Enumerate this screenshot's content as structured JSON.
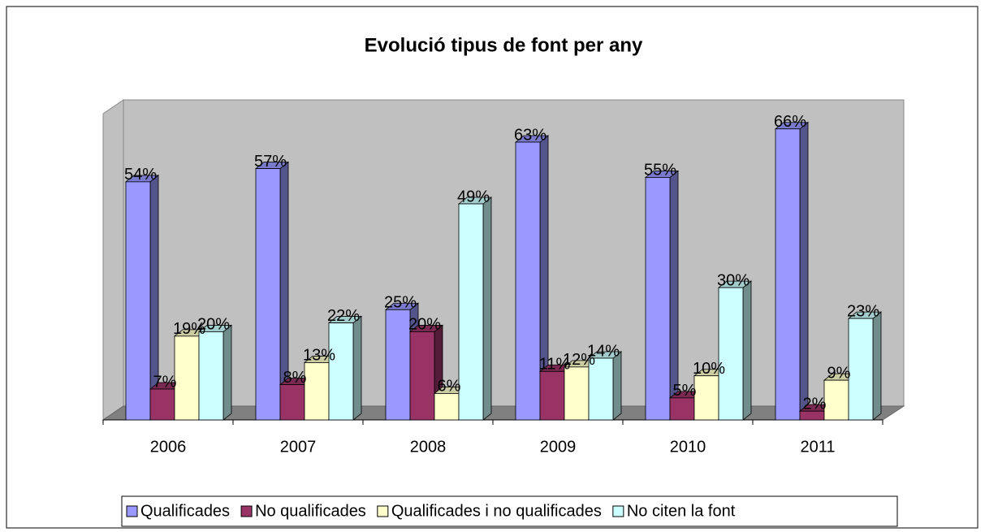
{
  "chart_data": {
    "type": "bar3d",
    "title": "Evolució tipus de font per any",
    "categories": [
      "2006",
      "2007",
      "2008",
      "2009",
      "2010",
      "2011"
    ],
    "ylim": [
      0,
      70
    ],
    "series": [
      {
        "name": "Qualificades",
        "color": "#9999ff",
        "values": [
          54,
          57,
          25,
          63,
          55,
          66
        ],
        "value_labels": [
          "54%",
          "57%",
          "25%",
          "63%",
          "55%",
          "66%"
        ]
      },
      {
        "name": "No qualificades",
        "color": "#993366",
        "values": [
          7,
          8,
          20,
          11,
          5,
          2
        ],
        "value_labels": [
          "7%",
          "8%",
          "20%",
          "11%",
          "5%",
          "2%"
        ]
      },
      {
        "name": "Qualificades i no qualificades",
        "color": "#ffffcc",
        "values": [
          19,
          13,
          6,
          12,
          10,
          9
        ],
        "value_labels": [
          "19%",
          "13%",
          "6%",
          "12%",
          "10%",
          "9%"
        ]
      },
      {
        "name": "No citen la font",
        "color": "#ccffff",
        "values": [
          20,
          22,
          49,
          14,
          30,
          23
        ],
        "value_labels": [
          "20%",
          "22%",
          "49%",
          "14%",
          "30%",
          "23%"
        ]
      }
    ],
    "legend": "bottom"
  }
}
